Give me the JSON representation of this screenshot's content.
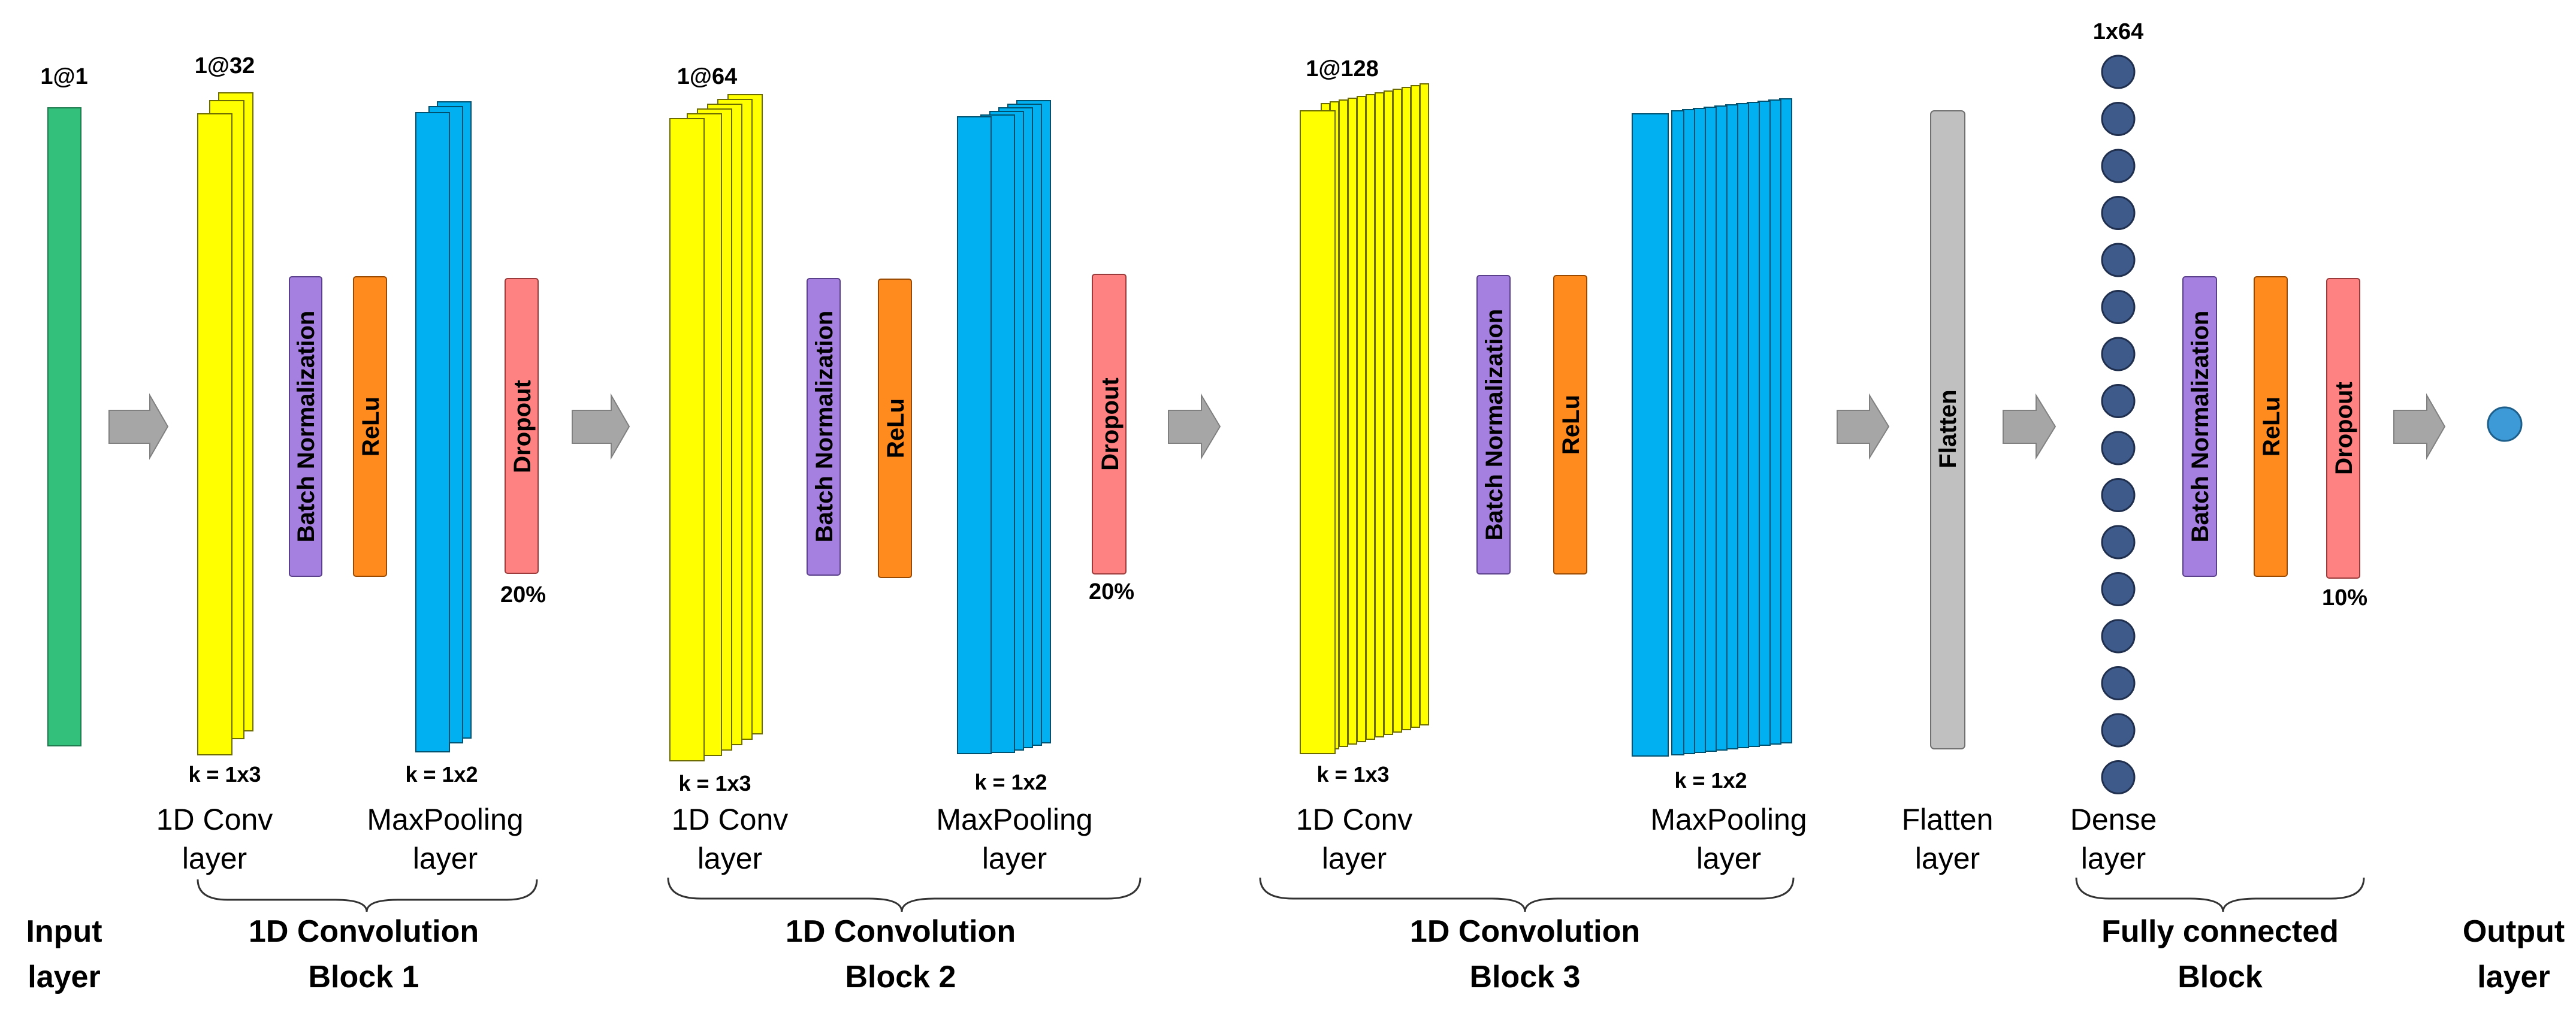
{
  "colors": {
    "input": "#33C07A",
    "conv": "#FFFF00",
    "pool": "#00B0F0",
    "batchnorm": "#A680E0",
    "relu": "#FF8A1E",
    "dropout": "#FF8282",
    "flatten": "#C0C0C0",
    "dense_node": "#3D5A8A",
    "output_node": "#3D9AD6",
    "arrow": "#A6A6A6"
  },
  "layer_labels": {
    "conv": "1D Conv\nlayer",
    "pool": "MaxPooling\nlayer",
    "flatten": "Flatten\nlayer",
    "dense": "Dense\nlayer"
  },
  "input": {
    "shape": "1@1",
    "label_line1": "Input",
    "label_line2": "layer"
  },
  "blocks": [
    {
      "conv_shape": "1@32",
      "conv_kernel": "k = 1x3",
      "pool_kernel": "k = 1x2",
      "batchnorm": "Batch Normalization",
      "relu": "ReLu",
      "dropout": "Dropout",
      "dropout_rate": "20%",
      "conv_label_1": "1D Conv",
      "conv_label_2": "layer",
      "pool_label_1": "MaxPooling",
      "pool_label_2": "layer",
      "title_1": "1D Convolution",
      "title_2": "Block 1"
    },
    {
      "conv_shape": "1@64",
      "conv_kernel": "k = 1x3",
      "pool_kernel": "k = 1x2",
      "batchnorm": "Batch Normalization",
      "relu": "ReLu",
      "dropout": "Dropout",
      "dropout_rate": "20%",
      "conv_label_1": "1D Conv",
      "conv_label_2": "layer",
      "pool_label_1": "MaxPooling",
      "pool_label_2": "layer",
      "title_1": "1D Convolution",
      "title_2": "Block 2"
    },
    {
      "conv_shape": "1@128",
      "conv_kernel": "k = 1x3",
      "pool_kernel": "k = 1x2",
      "batchnorm": "Batch Normalization",
      "relu": "ReLu",
      "conv_label_1": "1D Conv",
      "conv_label_2": "layer",
      "pool_label_1": "MaxPooling",
      "pool_label_2": "layer",
      "title_1": "1D Convolution",
      "title_2": "Block 3"
    }
  ],
  "flatten": {
    "text": "Flatten",
    "label_1": "Flatten",
    "label_2": "layer"
  },
  "fc_block": {
    "dense_shape": "1x64",
    "dense_label_1": "Dense",
    "dense_label_2": "layer",
    "batchnorm": "Batch Normalization",
    "relu": "ReLu",
    "dropout": "Dropout",
    "dropout_rate": "10%",
    "title_1": "Fully connected",
    "title_2": "Block"
  },
  "output": {
    "label_line1": "Output",
    "label_line2": "layer"
  }
}
